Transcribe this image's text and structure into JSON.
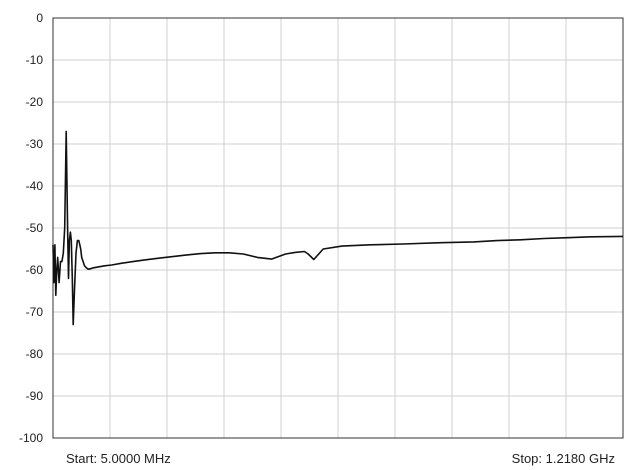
{
  "chart_data": {
    "type": "line",
    "ylim": [
      -100,
      0
    ],
    "xlim": [
      5.0,
      1218.0
    ],
    "x_unit": "MHz",
    "y_ticks": [
      "0",
      "-10",
      "-20",
      "-30",
      "-40",
      "-50",
      "-60",
      "-70",
      "-80",
      "-90",
      "-100"
    ],
    "grid": true,
    "x_divisions": 10,
    "start_label": "Start: 5.0000 MHz",
    "stop_label": "Stop: 1.2180 GHz",
    "line_color": "#111111",
    "grid_color": "#d0d0d0",
    "series": [
      {
        "x": [
          5,
          7,
          9,
          11,
          13,
          15,
          18,
          21,
          24,
          27,
          30,
          33,
          36,
          38,
          40,
          42,
          44,
          46,
          48,
          51,
          54,
          57,
          60,
          62,
          64,
          66,
          69,
          72,
          76,
          80,
          85,
          90,
          100,
          115,
          130,
          150,
          175,
          200,
          230,
          260,
          290,
          320,
          350,
          380,
          410,
          440,
          470,
          500,
          520,
          540,
          548,
          560,
          580,
          620,
          680,
          750,
          830,
          900,
          950,
          1000,
          1050,
          1100,
          1150,
          1218
        ],
        "y": [
          -54,
          -63,
          -54,
          -66,
          -60,
          -57,
          -63,
          -58,
          -58,
          -56,
          -50,
          -27,
          -50,
          -62,
          -53,
          -51,
          -53,
          -62,
          -73,
          -64,
          -56,
          -53,
          -53,
          -54,
          -55,
          -57,
          -58,
          -59,
          -59.5,
          -59.8,
          -59.7,
          -59.5,
          -59.3,
          -59,
          -58.8,
          -58.4,
          -58,
          -57.6,
          -57.2,
          -56.8,
          -56.4,
          -56.1,
          -55.9,
          -55.9,
          -56.2,
          -57,
          -57.4,
          -56.2,
          -55.8,
          -55.6,
          -56.2,
          -57.5,
          -55,
          -54.3,
          -54,
          -53.8,
          -53.5,
          -53.3,
          -53,
          -52.8,
          -52.5,
          -52.3,
          -52.1,
          -52
        ]
      }
    ]
  }
}
